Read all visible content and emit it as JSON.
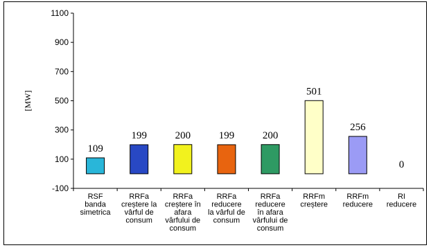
{
  "chart_data": {
    "type": "bar",
    "title": "",
    "xlabel": "",
    "ylabel": "[MW]",
    "ylim": [
      -100,
      1100
    ],
    "yticks": [
      "-100",
      "100",
      "300",
      "500",
      "700",
      "900",
      "1100"
    ],
    "grid": false,
    "categories": [
      [
        "RSF",
        "banda",
        "simetrica"
      ],
      [
        "RRFa",
        "creștere la",
        "vârful de",
        "consum"
      ],
      [
        "RRFa",
        "creștere în",
        "afara",
        "vârfului de",
        "consum"
      ],
      [
        "RRFa",
        "reducere",
        "la vârful de",
        "consum"
      ],
      [
        "RRFa",
        "reducere",
        "în afara",
        "vârfului de",
        "consum"
      ],
      [
        "RRFm",
        "creștere"
      ],
      [
        "RRFm",
        "reducere"
      ],
      [
        "RI",
        "reducere"
      ]
    ],
    "values": [
      109,
      199,
      200,
      199,
      200,
      501,
      256,
      0
    ],
    "data_labels": [
      "109",
      "199",
      "200",
      "199",
      "200",
      "501",
      "256",
      "0"
    ],
    "colors": [
      "#29b6d9",
      "#2848c4",
      "#f2f21e",
      "#e8640f",
      "#2e9a63",
      "#ffffc8",
      "#9b9bf5",
      "#cccccc"
    ]
  }
}
